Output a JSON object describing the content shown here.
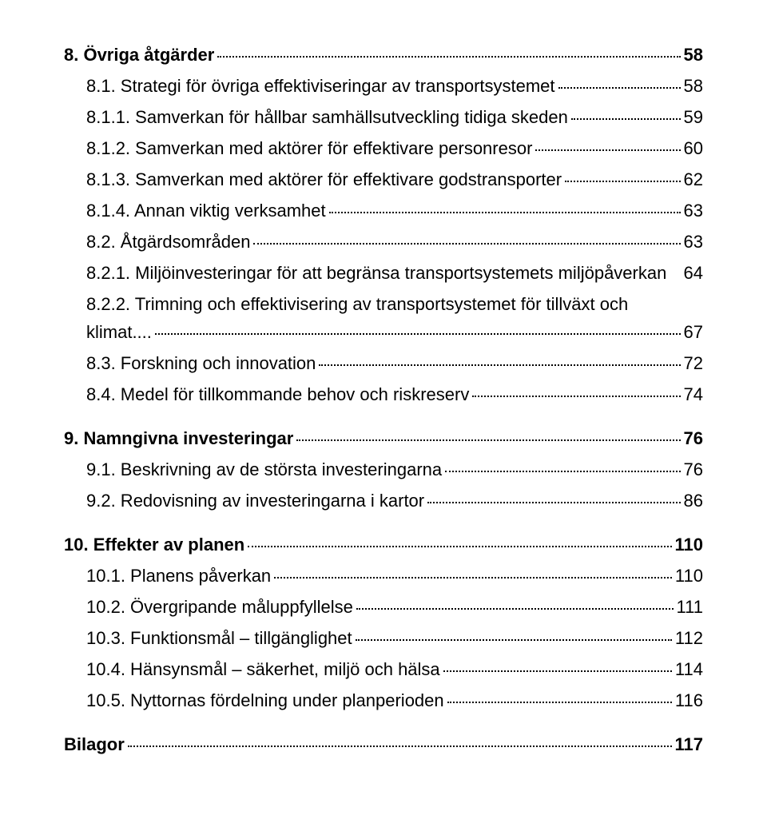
{
  "toc": [
    {
      "level": 0,
      "number": "8.",
      "title": "Övriga åtgärder",
      "page": "58"
    },
    {
      "level": 1,
      "number": "8.1.",
      "title": "Strategi för övriga effektiviseringar av transportsystemet",
      "page": "58"
    },
    {
      "level": 2,
      "number": "8.1.1.",
      "title": "Samverkan för hållbar samhällsutveckling tidiga skeden",
      "page": "59"
    },
    {
      "level": 2,
      "number": "8.1.2.",
      "title": "Samverkan med aktörer för effektivare personresor",
      "page": "60"
    },
    {
      "level": 2,
      "number": "8.1.3.",
      "title": "Samverkan med aktörer för effektivare godstransporter",
      "page": "62"
    },
    {
      "level": 2,
      "number": "8.1.4.",
      "title": "Annan viktig verksamhet",
      "page": "63"
    },
    {
      "level": 1,
      "number": "8.2.",
      "title": "Åtgärdsområden",
      "page": "63"
    },
    {
      "level": 2,
      "number": "8.2.1.",
      "title": "Miljöinvesteringar för att begränsa transportsystemets miljöpåverkan",
      "page": "64",
      "nodots": true
    },
    {
      "level": 2,
      "number": "8.2.2.",
      "title": "Trimning och effektivisering av transportsystemet för tillväxt och",
      "page": "",
      "nodots": true,
      "cont": {
        "title": "klimat....",
        "page": "67"
      }
    },
    {
      "level": 1,
      "number": "8.3.",
      "title": "Forskning och innovation",
      "page": "72"
    },
    {
      "level": 1,
      "number": "8.4.",
      "title": "Medel för tillkommande behov och riskreserv",
      "page": "74"
    },
    {
      "level": 0,
      "number": "9.",
      "title": "Namngivna investeringar",
      "page": "76"
    },
    {
      "level": 1,
      "number": "9.1.",
      "title": "Beskrivning av de största investeringarna",
      "page": "76"
    },
    {
      "level": 1,
      "number": "9.2.",
      "title": "Redovisning av investeringarna i kartor",
      "page": "86"
    },
    {
      "level": 0,
      "number": "10.",
      "title": "Effekter av planen",
      "page": "110"
    },
    {
      "level": 1,
      "number": "10.1.",
      "title": "Planens påverkan",
      "page": "110"
    },
    {
      "level": 1,
      "number": "10.2.",
      "title": "Övergripande måluppfyllelse",
      "page": "111"
    },
    {
      "level": 1,
      "number": "10.3.",
      "title": "Funktionsmål – tillgänglighet",
      "page": "112"
    },
    {
      "level": 1,
      "number": "10.4.",
      "title": "Hänsynsmål – säkerhet, miljö och hälsa",
      "page": "114"
    },
    {
      "level": 1,
      "number": "10.5.",
      "title": "Nyttornas fördelning under planperioden",
      "page": "116"
    },
    {
      "level": 0,
      "number": "",
      "title": "Bilagor",
      "page": "117"
    }
  ]
}
